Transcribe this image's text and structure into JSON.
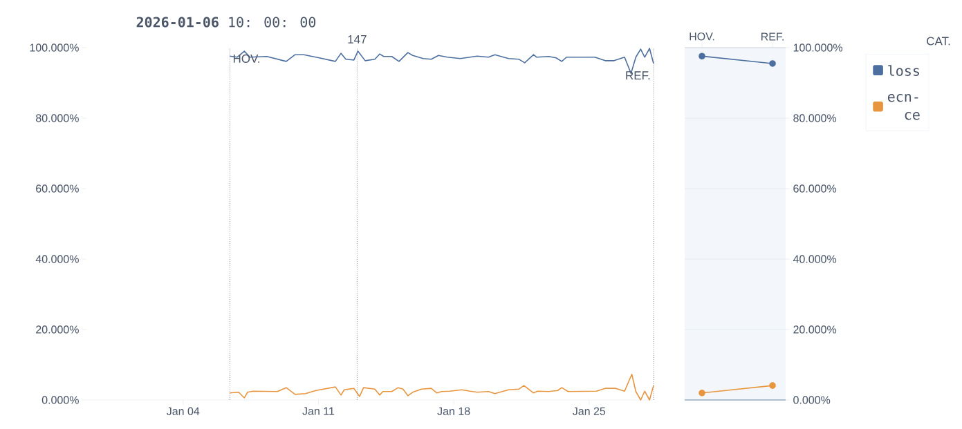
{
  "chart_data": [
    {
      "type": "line",
      "title": "**2026-01-06** 10: 00: 00",
      "xlim": [
        "2025-12-30",
        "2026-01-28T08:00"
      ],
      "xticks": [
        {
          "value": "2026-01-04",
          "label": "Jan 04"
        },
        {
          "value": "2026-01-11",
          "label": "Jan 11"
        },
        {
          "value": "2026-01-18",
          "label": "Jan 18"
        },
        {
          "value": "2026-01-25",
          "label": "Jan 25"
        }
      ],
      "ylim": [
        0,
        100
      ],
      "yticks": [
        {
          "value": 0,
          "label": "0.000%"
        },
        {
          "value": 20,
          "label": "20.000%"
        },
        {
          "value": 40,
          "label": "40.000%"
        },
        {
          "value": 60,
          "label": "60.000%"
        },
        {
          "value": 80,
          "label": "80.000%"
        },
        {
          "value": 100,
          "label": "100.000%"
        }
      ],
      "grid": false,
      "ref_lines": [
        {
          "axis": "x",
          "value": "2026-01-06T10:00",
          "label": "HOV.",
          "line_style": "dotted",
          "color": "#6b7280"
        },
        {
          "axis": "x",
          "value": "2026-01-13T00:00",
          "label": "147",
          "line_style": "dotted",
          "color": "#6b7280"
        },
        {
          "axis": "x",
          "value": "2026-01-28T08:00",
          "label": "REF.",
          "line_style": "dotted",
          "color": "#6b7280"
        }
      ],
      "series": [
        {
          "color": "#4c6fa0",
          "x": [
            "2026-01-06T10:00",
            "2026-01-06T19:00",
            "2026-01-07T04:00",
            "2026-01-07T11:00",
            "2026-01-08T08:00",
            "2026-01-09T08:00",
            "2026-01-09T19:00",
            "2026-01-10T06:00",
            "2026-01-11T01:00",
            "2026-01-11T21:00",
            "2026-01-12T04:00",
            "2026-01-12T10:00",
            "2026-01-12T20:00",
            "2026-01-13T01:00",
            "2026-01-13T10:00",
            "2026-01-13T22:00",
            "2026-01-14T04:00",
            "2026-01-14T09:00",
            "2026-01-14T19:00",
            "2026-01-15T04:00",
            "2026-01-15T15:00",
            "2026-01-15T21:00",
            "2026-01-16T10:00",
            "2026-01-16T20:00",
            "2026-01-17T05:00",
            "2026-01-17T16:00",
            "2026-01-18T08:00",
            "2026-01-18T20:00",
            "2026-01-19T05:00",
            "2026-01-19T19:00",
            "2026-01-20T03:00",
            "2026-01-20T20:00",
            "2026-01-21T09:00",
            "2026-01-21T16:00",
            "2026-01-22T03:00",
            "2026-01-22T07:00",
            "2026-01-22T22:00",
            "2026-01-23T07:00",
            "2026-01-23T14:00",
            "2026-01-23T20:00",
            "2026-01-25T07:00",
            "2026-01-25T20:00",
            "2026-01-26T07:00",
            "2026-01-26T20:00",
            "2026-01-27T04:00",
            "2026-01-27T10:00",
            "2026-01-27T16:00",
            "2026-01-27T21:00",
            "2026-01-28T03:00",
            "2026-01-28T08:00"
          ],
          "values": [
            97.6,
            97.3,
            99.0,
            97.3,
            97.5,
            96.1,
            98.0,
            98.0,
            97.1,
            96.1,
            98.4,
            96.7,
            96.5,
            99.0,
            96.3,
            96.7,
            98.2,
            97.5,
            97.5,
            96.1,
            98.6,
            97.8,
            96.9,
            96.7,
            97.8,
            97.3,
            96.9,
            97.3,
            97.6,
            97.3,
            98.0,
            96.9,
            96.7,
            95.7,
            98.0,
            97.3,
            97.5,
            97.1,
            96.1,
            97.3,
            97.3,
            96.3,
            96.3,
            97.3,
            92.7,
            97.3,
            99.6,
            97.3,
            99.8,
            95.5
          ]
        },
        {
          "color": "#e8953f",
          "x": [
            "2026-01-06T10:00",
            "2026-01-06T21:00",
            "2026-01-07T04:00",
            "2026-01-07T08:00",
            "2026-01-07T15:00",
            "2026-01-08T21:00",
            "2026-01-09T08:00",
            "2026-01-09T19:00",
            "2026-01-10T08:00",
            "2026-01-10T21:00",
            "2026-01-11T21:00",
            "2026-01-12T04:00",
            "2026-01-12T08:00",
            "2026-01-12T20:00",
            "2026-01-13T03:00",
            "2026-01-13T08:00",
            "2026-01-13T22:00",
            "2026-01-14T04:00",
            "2026-01-14T08:00",
            "2026-01-14T19:00",
            "2026-01-15T03:00",
            "2026-01-15T09:00",
            "2026-01-15T15:00",
            "2026-01-15T21:00",
            "2026-01-16T08:00",
            "2026-01-16T20:00",
            "2026-01-17T03:00",
            "2026-01-17T09:00",
            "2026-01-17T19:00",
            "2026-01-18T10:00",
            "2026-01-18T20:00",
            "2026-01-19T05:00",
            "2026-01-19T19:00",
            "2026-01-20T03:00",
            "2026-01-20T20:00",
            "2026-01-21T09:00",
            "2026-01-21T15:00",
            "2026-01-22T03:00",
            "2026-01-22T08:00",
            "2026-01-22T22:00",
            "2026-01-23T09:00",
            "2026-01-23T14:00",
            "2026-01-23T22:00",
            "2026-01-25T09:00",
            "2026-01-25T20:00",
            "2026-01-26T09:00",
            "2026-01-26T20:00",
            "2026-01-27T05:00",
            "2026-01-27T10:00",
            "2026-01-27T16:00",
            "2026-01-27T21:00",
            "2026-01-28T03:00",
            "2026-01-28T08:00"
          ],
          "values": [
            2.0,
            2.2,
            0.6,
            2.2,
            2.5,
            2.4,
            3.5,
            1.6,
            1.8,
            2.7,
            3.7,
            1.4,
            2.9,
            3.3,
            1.0,
            3.5,
            3.1,
            1.4,
            2.4,
            2.4,
            3.5,
            3.1,
            1.2,
            2.2,
            3.1,
            3.3,
            2.0,
            2.4,
            2.5,
            2.9,
            2.5,
            2.2,
            2.4,
            1.8,
            2.9,
            3.1,
            4.1,
            2.0,
            2.5,
            2.4,
            2.7,
            3.5,
            2.4,
            2.5,
            3.3,
            3.3,
            2.5,
            7.3,
            2.4,
            0.0,
            2.5,
            0.0,
            4.1
          ]
        }
      ]
    },
    {
      "type": "line",
      "categories": [
        "HOV.",
        "REF."
      ],
      "ylim": [
        0,
        100
      ],
      "yticks": [
        {
          "value": 0,
          "label": "0.000%"
        },
        {
          "value": 20,
          "label": "20.000%"
        },
        {
          "value": 40,
          "label": "40.000%"
        },
        {
          "value": 60,
          "label": "60.000%"
        },
        {
          "value": 80,
          "label": "80.000%"
        },
        {
          "value": 100,
          "label": "100.000%"
        }
      ],
      "grid": "y",
      "legend": "right",
      "legend_title": "CAT.",
      "marker": "circle",
      "series": [
        {
          "name": "loss",
          "color": "#4c6fa0",
          "values": [
            97.6,
            95.5
          ]
        },
        {
          "name": "ecn-ce",
          "color": "#e8953f",
          "values": [
            2.0,
            4.1
          ]
        }
      ]
    }
  ]
}
